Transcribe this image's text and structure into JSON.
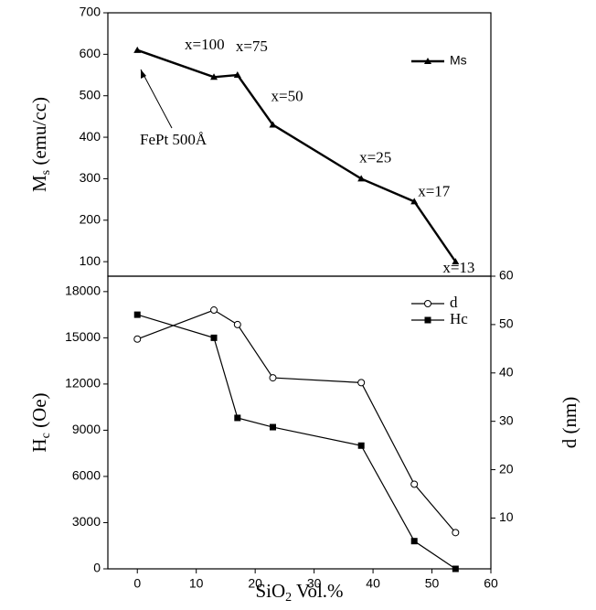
{
  "chart_data": [
    {
      "type": "line",
      "ylabel": {
        "main": "M",
        "sub": "s",
        "rest": " (emu/cc)"
      },
      "x": [
        0,
        13,
        17,
        23,
        38,
        47,
        54
      ],
      "series": [
        {
          "name": "Ms",
          "color": "#000000",
          "marker": "triangle",
          "values": [
            610,
            545,
            550,
            430,
            300,
            245,
            100
          ]
        }
      ],
      "point_labels": [
        null,
        "x=100",
        "x=75",
        "x=50",
        "x=25",
        "x=17",
        "x=13"
      ],
      "annotation": "FePt 500Å",
      "xlim": [
        -5,
        60
      ],
      "ylim": [
        65,
        700
      ],
      "yticks": [
        100,
        200,
        300,
        400,
        500,
        600,
        700
      ],
      "legend": "upper right"
    },
    {
      "type": "line",
      "xlabel": {
        "main": "SiO",
        "sub": "2",
        "rest": " Vol.%"
      },
      "ylabel": {
        "main": "H",
        "sub": "c",
        "rest": " (Oe)"
      },
      "y2label": "d (nm)",
      "x": [
        0,
        13,
        17,
        23,
        38,
        47,
        54
      ],
      "series": [
        {
          "name": "d",
          "color": "#000000",
          "marker": "circle",
          "axis": "y2",
          "values": [
            47,
            53,
            50,
            39,
            38,
            17,
            7
          ]
        },
        {
          "name": "Hc",
          "color": "#000000",
          "marker": "square",
          "values": [
            16500,
            15000,
            9800,
            9200,
            8000,
            1800,
            0
          ]
        }
      ],
      "xlim": [
        -5,
        60
      ],
      "xticks": [
        0,
        10,
        20,
        30,
        40,
        50,
        60
      ],
      "ylim": [
        0,
        19000
      ],
      "yticks": [
        0,
        3000,
        6000,
        9000,
        12000,
        15000,
        18000
      ],
      "y2lim": [
        -0.5,
        60
      ],
      "y2ticks": [
        10,
        20,
        30,
        40,
        50,
        60
      ],
      "legend": "upper right"
    }
  ]
}
